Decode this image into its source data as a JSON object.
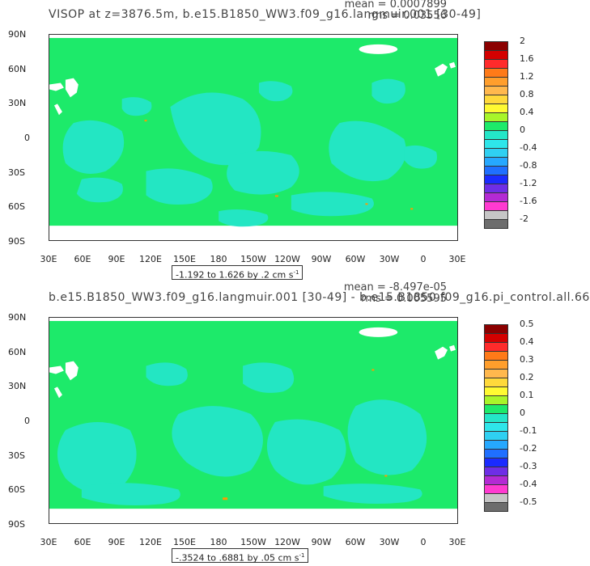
{
  "colors": {
    "green": "#1dea6a",
    "cyan": "#24e6c8",
    "white": "#ffffff",
    "orange": "#ff9a00"
  },
  "panels": [
    {
      "title": "VISOP at z=3876.5m, b.e15.B1850_WW3.f09_g16.langmuir.001 [30-49]",
      "mean": "mean = 0.0007899",
      "rms": "rms = 0.03556",
      "range_prefix": "-1.192 to 1.626 by .2 cm s",
      "range_sup": "-1",
      "colorbar_labels": [
        "2",
        "1.6",
        "1.2",
        "0.8",
        "0.4",
        "0",
        "-0.4",
        "-0.8",
        "-1.2",
        "-1.6",
        "-2"
      ],
      "colorbar_colors": [
        "#8b0000",
        "#d40000",
        "#ff2b2b",
        "#ff7a18",
        "#ff9e2c",
        "#ffb84d",
        "#ffd93b",
        "#fffa32",
        "#a8f52a",
        "#1dea6a",
        "#24e6c8",
        "#2ee6ea",
        "#2fd0f2",
        "#26a8ff",
        "#1f6fff",
        "#1a2bff",
        "#6e2ee6",
        "#b42ad4",
        "#ff3ad1",
        "#c6c6c6",
        "#6d6d6d"
      ]
    },
    {
      "title": "b.e15.B1850_WW3.f09_g16.langmuir.001 [30-49] - b.e15.B1850.f09_g16.pi_control.all.66",
      "mean": "mean = -8.497e-05",
      "rms": "rms = 0.005595",
      "range_prefix": "-.3524 to .6881 by .05 cm s",
      "range_sup": "-1",
      "colorbar_labels": [
        "0.5",
        "0.4",
        "0.3",
        "0.2",
        "0.1",
        "0",
        "-0.1",
        "-0.2",
        "-0.3",
        "-0.4",
        "-0.5"
      ],
      "colorbar_colors": [
        "#8b0000",
        "#d40000",
        "#ff2b2b",
        "#ff7a18",
        "#ff9e2c",
        "#ffb84d",
        "#ffd93b",
        "#fffa32",
        "#a8f52a",
        "#1dea6a",
        "#24e6c8",
        "#2ee6ea",
        "#2fd0f2",
        "#26a8ff",
        "#1f6fff",
        "#1a2bff",
        "#6e2ee6",
        "#b42ad4",
        "#ff3ad1",
        "#c6c6c6",
        "#6d6d6d"
      ]
    }
  ],
  "lat_labels": [
    "90N",
    "60N",
    "30N",
    "0",
    "30S",
    "60S",
    "90S"
  ],
  "lon_labels": [
    "30E",
    "60E",
    "90E",
    "120E",
    "150E",
    "180",
    "150W",
    "120W",
    "90W",
    "60W",
    "30W",
    "0",
    "30E"
  ]
}
